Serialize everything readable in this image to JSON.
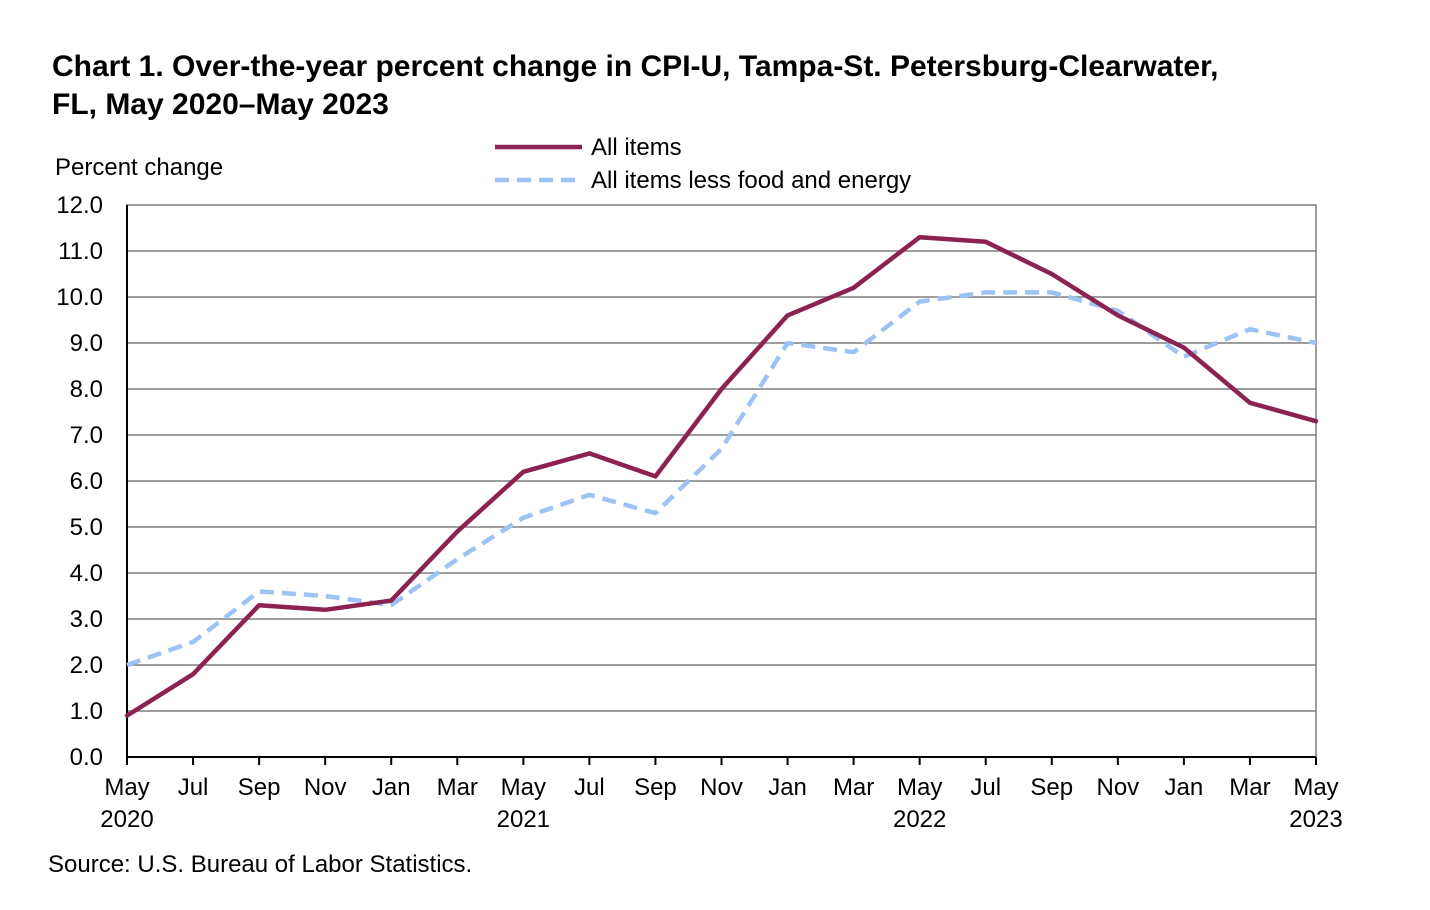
{
  "chart_data": {
    "type": "line",
    "title_line1": "Chart 1. Over-the-year percent change in CPI-U, Tampa-St. Petersburg-Clearwater,",
    "title_line2": "FL, May 2020–May 2023",
    "ylabel": "Percent change",
    "source": "Source: U.S. Bureau of Labor Statistics.",
    "ylim": [
      0,
      12
    ],
    "yticks": [
      "0.0",
      "1.0",
      "2.0",
      "3.0",
      "4.0",
      "5.0",
      "6.0",
      "7.0",
      "8.0",
      "9.0",
      "10.0",
      "11.0",
      "12.0"
    ],
    "x": [
      "May 2020",
      "Jul 2020",
      "Sep 2020",
      "Nov 2020",
      "Jan 2021",
      "Mar 2021",
      "May 2021",
      "Jul 2021",
      "Sep 2021",
      "Nov 2021",
      "Jan 2022",
      "Mar 2022",
      "May 2022",
      "Jul 2022",
      "Sep 2022",
      "Nov 2022",
      "Jan 2023",
      "Mar 2023",
      "May 2023"
    ],
    "xtick_months": [
      "May",
      "Jul",
      "Sep",
      "Nov",
      "Jan",
      "Mar",
      "May",
      "Jul",
      "Sep",
      "Nov",
      "Jan",
      "Mar",
      "May",
      "Jul",
      "Sep",
      "Nov",
      "Jan",
      "Mar",
      "May"
    ],
    "xtick_years": [
      "2020",
      "",
      "",
      "",
      "",
      "",
      "2021",
      "",
      "",
      "",
      "",
      "",
      "2022",
      "",
      "",
      "",
      "",
      "",
      "2023"
    ],
    "grid": true,
    "legend_position": "top-center",
    "series": [
      {
        "name": "All items",
        "color": "#8B2252",
        "style": "solid",
        "values": [
          0.9,
          1.8,
          3.3,
          3.2,
          3.4,
          4.9,
          6.2,
          6.6,
          6.1,
          8.0,
          9.6,
          10.2,
          11.3,
          11.2,
          10.5,
          9.6,
          8.9,
          7.7,
          7.3
        ]
      },
      {
        "name": "All items less food and energy",
        "color": "#9DC3F5",
        "style": "dashed",
        "values": [
          2.0,
          2.5,
          3.6,
          3.5,
          3.3,
          4.3,
          5.2,
          5.7,
          5.3,
          6.7,
          9.0,
          8.8,
          9.9,
          10.1,
          10.1,
          9.7,
          8.7,
          9.3,
          9.0
        ]
      }
    ]
  }
}
